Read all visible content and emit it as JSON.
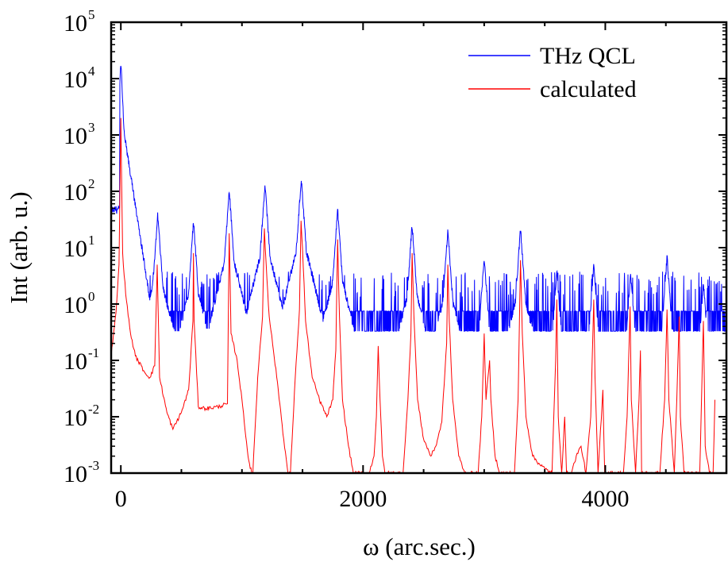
{
  "chart_data": {
    "type": "line",
    "xlabel": "ω (arc.sec.)",
    "ylabel": "Int (arb. u.)",
    "xlim": [
      -80,
      5000
    ],
    "ylim": [
      0.001,
      100000
    ],
    "yscale": "log",
    "x_ticks": [
      0,
      2000,
      4000
    ],
    "x_tick_labels": [
      "0",
      "2000",
      "4000"
    ],
    "y_ticks": [
      {
        "value": 0.001,
        "base": "10",
        "exp": "-3"
      },
      {
        "value": 0.01,
        "base": "10",
        "exp": "-2"
      },
      {
        "value": 0.1,
        "base": "10",
        "exp": "-1"
      },
      {
        "value": 1,
        "base": "10",
        "exp": "0"
      },
      {
        "value": 10,
        "base": "10",
        "exp": "1"
      },
      {
        "value": 100,
        "base": "10",
        "exp": "2"
      },
      {
        "value": 1000,
        "base": "10",
        "exp": "3"
      },
      {
        "value": 10000,
        "base": "10",
        "exp": "4"
      },
      {
        "value": 100000,
        "base": "10",
        "exp": "5"
      }
    ],
    "grid": false,
    "legend_position": "top-right",
    "series": [
      {
        "name": "THz QCL",
        "color": "#0000ff",
        "baseline": 0.75,
        "noise_low": 0.33,
        "noise_high": 1.5,
        "peaks": [
          {
            "x": -60,
            "y": 45
          },
          {
            "x": 0,
            "y": 21000
          },
          {
            "x": 305,
            "y": 40
          },
          {
            "x": 600,
            "y": 30
          },
          {
            "x": 895,
            "y": 105
          },
          {
            "x": 1190,
            "y": 135
          },
          {
            "x": 1490,
            "y": 170
          },
          {
            "x": 1790,
            "y": 48
          },
          {
            "x": 2405,
            "y": 26
          },
          {
            "x": 2700,
            "y": 21
          },
          {
            "x": 3000,
            "y": 7
          },
          {
            "x": 3300,
            "y": 22
          },
          {
            "x": 3600,
            "y": 4
          },
          {
            "x": 3905,
            "y": 5
          },
          {
            "x": 4210,
            "y": 3.5
          },
          {
            "x": 4510,
            "y": 7
          },
          {
            "x": 4810,
            "y": 2.5
          }
        ]
      },
      {
        "name": "calculated",
        "color": "#ff0000",
        "points": [
          [
            -80,
            0.12
          ],
          [
            -40,
            0.7
          ],
          [
            -15,
            5
          ],
          [
            0,
            2000
          ],
          [
            15,
            8
          ],
          [
            40,
            1.5
          ],
          [
            80,
            0.3
          ],
          [
            120,
            0.12
          ],
          [
            200,
            0.06
          ],
          [
            240,
            0.05
          ],
          [
            280,
            0.08
          ],
          [
            300,
            5
          ],
          [
            320,
            0.05
          ],
          [
            380,
            0.012
          ],
          [
            430,
            0.006
          ],
          [
            500,
            0.012
          ],
          [
            560,
            0.03
          ],
          [
            595,
            0.5
          ],
          [
            600,
            8
          ],
          [
            605,
            0.5
          ],
          [
            640,
            0.015
          ],
          [
            700,
            0.014
          ],
          [
            800,
            0.015
          ],
          [
            880,
            0.017
          ],
          [
            895,
            18
          ],
          [
            910,
            0.3
          ],
          [
            960,
            0.1
          ],
          [
            1000,
            0.02
          ],
          [
            1050,
            0.002
          ],
          [
            1080,
            0.001
          ],
          [
            1090,
            0.001
          ],
          [
            1130,
            0.05
          ],
          [
            1170,
            0.6
          ],
          [
            1185,
            22
          ],
          [
            1200,
            5
          ],
          [
            1225,
            0.6
          ],
          [
            1260,
            0.15
          ],
          [
            1300,
            0.03
          ],
          [
            1345,
            0.004
          ],
          [
            1380,
            0.001
          ],
          [
            1400,
            0.001
          ],
          [
            1440,
            0.05
          ],
          [
            1475,
            0.8
          ],
          [
            1488,
            30
          ],
          [
            1500,
            10
          ],
          [
            1525,
            0.5
          ],
          [
            1580,
            0.05
          ],
          [
            1640,
            0.02
          ],
          [
            1700,
            0.01
          ],
          [
            1750,
            0.02
          ],
          [
            1775,
            0.15
          ],
          [
            1790,
            14
          ],
          [
            1805,
            0.6
          ],
          [
            1830,
            0.02
          ],
          [
            1880,
            0.003
          ],
          [
            1920,
            0.001
          ],
          [
            2050,
            0.001
          ],
          [
            2090,
            0.002
          ],
          [
            2110,
            0.01
          ],
          [
            2125,
            0.18
          ],
          [
            2140,
            0.02
          ],
          [
            2160,
            0.002
          ],
          [
            2180,
            0.001
          ],
          [
            2330,
            0.001
          ],
          [
            2370,
            0.02
          ],
          [
            2395,
            0.3
          ],
          [
            2405,
            8
          ],
          [
            2420,
            0.6
          ],
          [
            2450,
            0.02
          ],
          [
            2500,
            0.004
          ],
          [
            2560,
            0.002
          ],
          [
            2600,
            0.003
          ],
          [
            2650,
            0.008
          ],
          [
            2690,
            0.2
          ],
          [
            2700,
            5
          ],
          [
            2712,
            0.5
          ],
          [
            2740,
            0.02
          ],
          [
            2790,
            0.002
          ],
          [
            2840,
            0.001
          ],
          [
            2950,
            0.001
          ],
          [
            2980,
            0.01
          ],
          [
            3000,
            0.3
          ],
          [
            3015,
            0.02
          ],
          [
            3045,
            0.1
          ],
          [
            3055,
            0.02
          ],
          [
            3090,
            0.002
          ],
          [
            3130,
            0.001
          ],
          [
            3250,
            0.001
          ],
          [
            3280,
            0.02
          ],
          [
            3300,
            6
          ],
          [
            3315,
            0.3
          ],
          [
            3345,
            0.01
          ],
          [
            3400,
            0.002
          ],
          [
            3450,
            0.0015
          ],
          [
            3500,
            0.0012
          ],
          [
            3560,
            0.001
          ],
          [
            3590,
            0.1
          ],
          [
            3600,
            1.2
          ],
          [
            3612,
            0.01
          ],
          [
            3640,
            0.001
          ],
          [
            3665,
            0.01
          ],
          [
            3680,
            0.001
          ],
          [
            3720,
            0.001
          ],
          [
            3760,
            0.002
          ],
          [
            3800,
            0.003
          ],
          [
            3840,
            0.001
          ],
          [
            3880,
            0.01
          ],
          [
            3905,
            1.2
          ],
          [
            3915,
            0.05
          ],
          [
            3940,
            0.001
          ],
          [
            3980,
            0.03
          ],
          [
            3995,
            0.001
          ],
          [
            4150,
            0.001
          ],
          [
            4180,
            0.01
          ],
          [
            4205,
            0.9
          ],
          [
            4215,
            0.02
          ],
          [
            4250,
            0.001
          ],
          [
            4278,
            0.02
          ],
          [
            4290,
            0.15
          ],
          [
            4300,
            0.001
          ],
          [
            4450,
            0.001
          ],
          [
            4490,
            0.02
          ],
          [
            4510,
            0.8
          ],
          [
            4525,
            0.02
          ],
          [
            4570,
            0.001
          ],
          [
            4590,
            0.02
          ],
          [
            4610,
            0.6
          ],
          [
            4620,
            0.01
          ],
          [
            4650,
            0.001
          ],
          [
            4780,
            0.001
          ],
          [
            4810,
            0.5
          ],
          [
            4825,
            0.003
          ],
          [
            4860,
            0.001
          ],
          [
            4890,
            0.001
          ],
          [
            4905,
            0.02
          ]
        ]
      }
    ]
  }
}
